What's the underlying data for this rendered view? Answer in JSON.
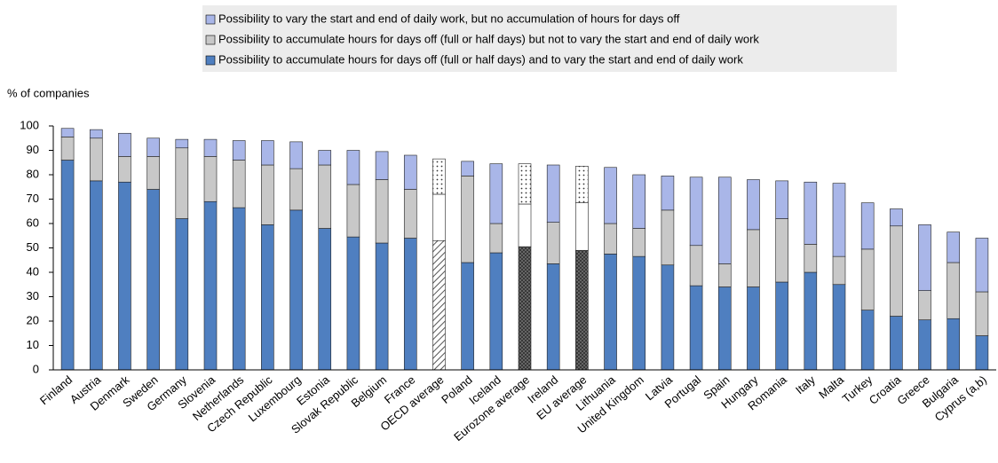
{
  "chart_data": {
    "type": "stacked_bar",
    "y_label": "% of companies",
    "categories": [
      "Finland",
      "Austria",
      "Denmark",
      "Sweden",
      "Germany",
      "Slovenia",
      "Netherlands",
      "Czech Republic",
      "Luxembourg",
      "Estonia",
      "Slovak Republic",
      "Belgium",
      "France",
      "OECD average",
      "Poland",
      "Iceland",
      "Eurozone average",
      "Ireland",
      "EU average",
      "Lithuania",
      "United Kingdom",
      "Latvia",
      "Portugal",
      "Spain",
      "Hungary",
      "Romania",
      "Italy",
      "Malta",
      "Turkey",
      "Croatia",
      "Greece",
      "Bulgaria",
      "Cyprus (a,b)"
    ],
    "patterns": [
      null,
      null,
      null,
      null,
      null,
      null,
      null,
      null,
      null,
      null,
      null,
      null,
      null,
      "hatch",
      null,
      null,
      "cross",
      null,
      "cross",
      null,
      null,
      null,
      null,
      null,
      null,
      null,
      null,
      null,
      null,
      null,
      null,
      null,
      null
    ],
    "series": [
      {
        "name": "Possibility to accumulate hours for days off (full or half days) and to vary the start and end of daily work",
        "color": "#4f7fc0",
        "values": [
          86,
          77.5,
          77,
          74,
          62,
          69,
          66.5,
          59.5,
          65.5,
          58,
          54.5,
          52,
          54,
          53,
          44,
          48,
          50.5,
          43.5,
          49,
          47.5,
          46.5,
          43,
          34.5,
          34,
          34,
          36,
          40,
          35,
          24.5,
          22,
          20.5,
          21,
          14
        ]
      },
      {
        "name": "Possibility to accumulate hours for days off (full or half days) but not to vary the start and end of daily work",
        "color": "#c8c8c8",
        "values": [
          9.5,
          17.5,
          10.5,
          13.5,
          29,
          18.5,
          19.5,
          24.5,
          17,
          26,
          21.5,
          26,
          20,
          19,
          35.5,
          12,
          17.5,
          17,
          19.5,
          12.5,
          11.5,
          22.5,
          16.5,
          9.5,
          23.5,
          26,
          11.5,
          11.5,
          25,
          37,
          12,
          23,
          18
        ]
      },
      {
        "name": "Possibility to vary the start and end of daily work, but no accumulation of hours for days off",
        "color": "#a9b6e8",
        "values": [
          3.5,
          3.5,
          9.5,
          7.5,
          3.5,
          7,
          8,
          10,
          11,
          6,
          14,
          11.5,
          14,
          14.5,
          6,
          24.5,
          16.5,
          23.5,
          15,
          23,
          22,
          14,
          28,
          35.5,
          20.5,
          15.5,
          25.5,
          30,
          19,
          7,
          27,
          12.5,
          22
        ]
      }
    ],
    "ylim": [
      0,
      100
    ],
    "yticks": [
      0,
      10,
      20,
      30,
      40,
      50,
      60,
      70,
      80,
      90,
      100
    ],
    "legend": "top"
  }
}
